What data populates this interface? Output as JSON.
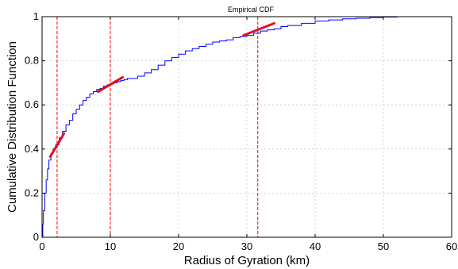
{
  "chart_data": {
    "type": "line",
    "title": "Empirical CDF",
    "xlabel": "Radius of Gyration (km)",
    "ylabel": "Cumulative Distribution Function",
    "xlim": [
      0,
      60
    ],
    "ylim": [
      0,
      1
    ],
    "xticks": [
      "0",
      "10",
      "20",
      "30",
      "40",
      "50",
      "60"
    ],
    "yticks": [
      "0",
      "0.2",
      "0.4",
      "0.6",
      "0.8",
      "1"
    ],
    "grid": true,
    "series": [
      {
        "color": "#0000ff",
        "x": [
          0,
          0.1,
          0.2,
          0.4,
          0.6,
          0.8,
          1.0,
          1.3,
          1.6,
          2.0,
          2.5,
          3.0,
          3.5,
          4.0,
          4.5,
          5.0,
          5.5,
          6.0,
          6.5,
          7.0,
          7.5,
          8.0,
          8.5,
          9.0,
          9.5,
          10.0,
          10.5,
          11.0,
          11.5,
          12.0,
          12.5,
          13.0,
          14.0,
          15.0,
          16.0,
          17.0,
          18.0,
          19.0,
          20.0,
          21.0,
          22.0,
          23.0,
          24.0,
          25.0,
          26.0,
          27.0,
          28.0,
          29.0,
          30.0,
          31.0,
          32.0,
          33.0,
          34.0,
          35.0,
          36.0,
          38.0,
          40.0,
          42.0,
          44.0,
          46.0,
          48.0,
          50.0,
          52.0,
          54.0,
          56.0,
          58.0,
          60.0
        ],
        "y": [
          0,
          0.06,
          0.12,
          0.2,
          0.26,
          0.31,
          0.35,
          0.38,
          0.4,
          0.42,
          0.45,
          0.48,
          0.51,
          0.53,
          0.56,
          0.58,
          0.6,
          0.62,
          0.635,
          0.65,
          0.66,
          0.67,
          0.675,
          0.685,
          0.69,
          0.695,
          0.7,
          0.705,
          0.71,
          0.715,
          0.72,
          0.72,
          0.73,
          0.745,
          0.76,
          0.78,
          0.8,
          0.815,
          0.83,
          0.845,
          0.855,
          0.865,
          0.875,
          0.885,
          0.89,
          0.895,
          0.905,
          0.91,
          0.915,
          0.925,
          0.935,
          0.94,
          0.945,
          0.955,
          0.96,
          0.97,
          0.98,
          0.985,
          0.99,
          0.993,
          0.996,
          0.998,
          1.0,
          1.0,
          1.0,
          1.0,
          1.0
        ]
      }
    ],
    "reference_lines": [
      {
        "x": 2.2,
        "color": "#ff0000",
        "style": "dashed"
      },
      {
        "x": 10.0,
        "color": "#ff0000",
        "style": "dashed"
      },
      {
        "x": 31.6,
        "color": "#ff0000",
        "style": "dashed"
      }
    ],
    "tangent_segments": [
      {
        "x1": 1.2,
        "y1": 0.365,
        "x2": 3.2,
        "y2": 0.47,
        "color": "#dd1122"
      },
      {
        "x1": 8.2,
        "y1": 0.66,
        "x2": 11.8,
        "y2": 0.725,
        "color": "#dd1122"
      },
      {
        "x1": 29.5,
        "y1": 0.915,
        "x2": 34.0,
        "y2": 0.97,
        "color": "#dd1122"
      }
    ]
  }
}
